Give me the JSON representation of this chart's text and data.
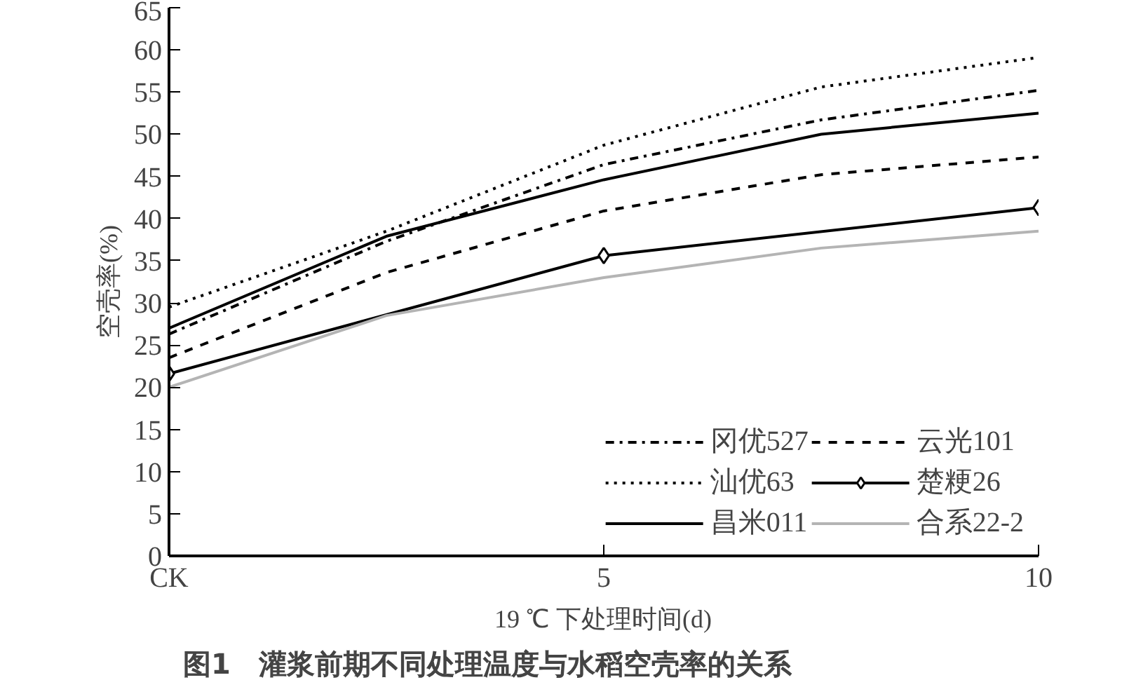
{
  "chart_data": {
    "type": "line",
    "title": "图1　灌浆前期不同处理温度与水稻空壳率的关系",
    "xlabel": "19 ℃ 下处理时间(d)",
    "ylabel": "空壳率(%)",
    "xlim": [
      0,
      10
    ],
    "xticks": [
      {
        "value": 0,
        "label": "CK"
      },
      5,
      10
    ],
    "ylim": [
      0,
      65
    ],
    "yticks": [
      0,
      5,
      10,
      15,
      20,
      25,
      30,
      35,
      40,
      45,
      50,
      55,
      60,
      65
    ],
    "grid": false,
    "legend": "bottom right",
    "series": [
      {
        "name": "冈优527",
        "color": "#000000",
        "line_style": "dashdot",
        "x": [
          0,
          2.5,
          5,
          7.5,
          10
        ],
        "values": [
          26.3,
          37.3,
          46.4,
          51.7,
          55.2
        ]
      },
      {
        "name": "汕优63",
        "color": "#000000",
        "line_style": "dotted",
        "x": [
          0,
          2.5,
          5,
          7.5,
          10
        ],
        "values": [
          29.5,
          38.5,
          48.7,
          55.6,
          59.1
        ]
      },
      {
        "name": "昌米011",
        "color": "#000000",
        "line_style": "solid",
        "x": [
          0,
          2.5,
          5,
          7.5,
          10
        ],
        "values": [
          27,
          37.9,
          44.6,
          50,
          52.5
        ]
      },
      {
        "name": "云光101",
        "color": "#000000",
        "line_style": "dashed",
        "x": [
          0,
          2.5,
          5,
          7.5,
          10
        ],
        "values": [
          23.5,
          33.6,
          40.9,
          45.2,
          47.3
        ]
      },
      {
        "name": "楚粳26",
        "color": "#000000",
        "line_style": "solid",
        "marker": "diamond",
        "x": [
          0,
          5,
          10
        ],
        "values": [
          21.6,
          35.6,
          41.3
        ]
      },
      {
        "name": "合系22-2",
        "color": "#b4b4b4",
        "line_style": "solid",
        "x": [
          0,
          2.5,
          5,
          7.5,
          10
        ],
        "values": [
          20,
          28.5,
          33,
          36.5,
          38.5
        ]
      }
    ]
  }
}
